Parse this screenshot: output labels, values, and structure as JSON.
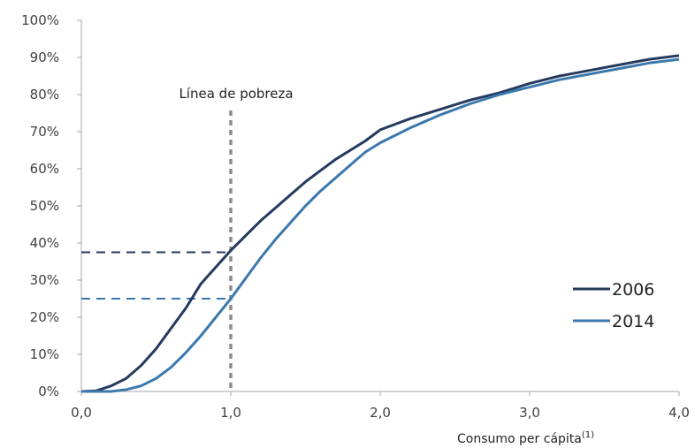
{
  "chart_data": {
    "type": "line",
    "title": "",
    "xlabel": "Consumo per cápita",
    "xlabel_superscript": "(1)",
    "ylabel": "",
    "xlim": [
      0,
      4
    ],
    "ylim": [
      0,
      100
    ],
    "x_ticks": [
      "0,0",
      "1,0",
      "2,0",
      "3,0",
      "4,0"
    ],
    "y_ticks": [
      "0%",
      "10%",
      "20%",
      "30%",
      "40%",
      "50%",
      "60%",
      "70%",
      "80%",
      "90%",
      "100%"
    ],
    "grid": false,
    "legend_position": "right",
    "annotation": "Línea de pobreza",
    "poverty_line_x": 1.0,
    "series": [
      {
        "name": "2006",
        "color": "#243a5e",
        "points": [
          [
            0,
            0
          ],
          [
            0.1,
            0.2
          ],
          [
            0.2,
            1.5
          ],
          [
            0.3,
            3.5
          ],
          [
            0.4,
            7
          ],
          [
            0.5,
            11.5
          ],
          [
            0.6,
            17
          ],
          [
            0.7,
            22.5
          ],
          [
            0.8,
            29
          ],
          [
            0.9,
            33.5
          ],
          [
            1.0,
            38
          ],
          [
            1.1,
            42
          ],
          [
            1.2,
            46
          ],
          [
            1.3,
            49.5
          ],
          [
            1.4,
            53
          ],
          [
            1.5,
            56.5
          ],
          [
            1.6,
            59.5
          ],
          [
            1.7,
            62.5
          ],
          [
            1.8,
            65
          ],
          [
            1.9,
            67.5
          ],
          [
            2.0,
            70.5
          ],
          [
            2.2,
            73.5
          ],
          [
            2.4,
            76
          ],
          [
            2.6,
            78.5
          ],
          [
            2.8,
            80.5
          ],
          [
            3.0,
            83
          ],
          [
            3.2,
            85
          ],
          [
            3.4,
            86.5
          ],
          [
            3.6,
            88
          ],
          [
            3.8,
            89.5
          ],
          [
            4.0,
            90.5
          ]
        ]
      },
      {
        "name": "2014",
        "color": "#3b78ad",
        "points": [
          [
            0,
            0
          ],
          [
            0.2,
            0
          ],
          [
            0.3,
            0.5
          ],
          [
            0.4,
            1.5
          ],
          [
            0.5,
            3.5
          ],
          [
            0.6,
            6.5
          ],
          [
            0.7,
            10.5
          ],
          [
            0.8,
            15
          ],
          [
            0.9,
            20
          ],
          [
            1.0,
            25
          ],
          [
            1.1,
            30.5
          ],
          [
            1.2,
            36
          ],
          [
            1.3,
            41
          ],
          [
            1.4,
            45.5
          ],
          [
            1.5,
            50
          ],
          [
            1.6,
            54
          ],
          [
            1.7,
            57.5
          ],
          [
            1.8,
            61
          ],
          [
            1.9,
            64.5
          ],
          [
            2.0,
            67
          ],
          [
            2.2,
            71
          ],
          [
            2.4,
            74.5
          ],
          [
            2.6,
            77.5
          ],
          [
            2.8,
            80
          ],
          [
            3.0,
            82
          ],
          [
            3.2,
            84
          ],
          [
            3.4,
            85.5
          ],
          [
            3.6,
            87
          ],
          [
            3.8,
            88.5
          ],
          [
            4.0,
            89.5
          ]
        ]
      }
    ],
    "reference_lines": [
      {
        "series": "2006",
        "y": 37.5
      },
      {
        "series": "2014",
        "y": 25
      }
    ]
  }
}
